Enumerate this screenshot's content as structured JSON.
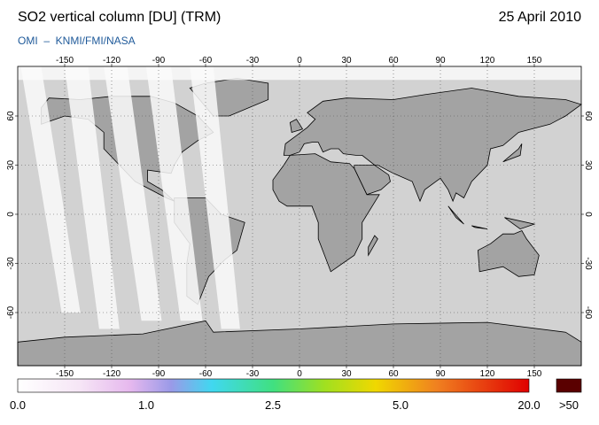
{
  "header": {
    "title": "SO2 vertical column [DU] (TRM)",
    "date": "25 April 2010",
    "source": "OMI  –  KNMI/FMI/NASA"
  },
  "map": {
    "lon_ticks": [
      -150,
      -120,
      -90,
      -60,
      -30,
      0,
      30,
      60,
      90,
      120,
      150
    ],
    "lat_ticks": [
      -60,
      -30,
      0,
      30,
      60
    ]
  },
  "colorbar": {
    "labels": [
      "0.0",
      "1.0",
      "2.5",
      "5.0",
      "20.0"
    ],
    "overflow_label": ">50"
  }
}
